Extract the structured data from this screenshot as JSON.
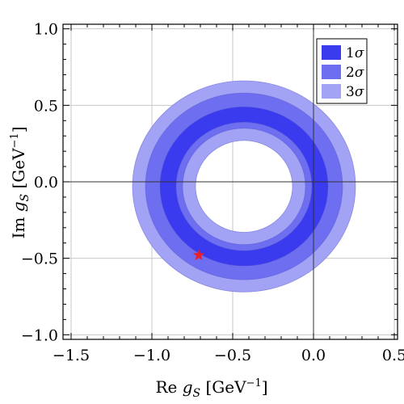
{
  "chart_data": {
    "type": "contour",
    "xlabel": {
      "prefix": "Re ",
      "var": "g",
      "sub": "S",
      "unit_pre": " [GeV",
      "sup": "−1",
      "unit_post": "]"
    },
    "ylabel": {
      "prefix": "Im ",
      "var": "g",
      "sub": "S",
      "unit_pre": " [GeV",
      "sup": "−1",
      "unit_post": "]"
    },
    "xlim": [
      -1.55,
      0.52
    ],
    "ylim": [
      -1.03,
      1.03
    ],
    "xticks": [
      {
        "value": -1.5,
        "label": "−1.5"
      },
      {
        "value": -1.0,
        "label": "−1.0"
      },
      {
        "value": -0.5,
        "label": "−0.5"
      },
      {
        "value": 0.0,
        "label": "0.0"
      },
      {
        "value": 0.5,
        "label": "0.5"
      }
    ],
    "yticks": [
      {
        "value": -1.0,
        "label": "−1.0"
      },
      {
        "value": -0.5,
        "label": "−0.5"
      },
      {
        "value": 0.0,
        "label": "0.0"
      },
      {
        "value": 0.5,
        "label": "0.5"
      },
      {
        "value": 1.0,
        "label": "1.0"
      }
    ],
    "grid": true,
    "center": [
      -0.43,
      -0.03
    ],
    "regions": [
      {
        "name": "3σ",
        "label_main": "3",
        "label_sym": "σ",
        "r_inner": 0.3,
        "r_outer": 0.69,
        "color": "#a3a3f5"
      },
      {
        "name": "2σ",
        "label_main": "2",
        "label_sym": "σ",
        "r_inner": 0.38,
        "r_outer": 0.61,
        "color": "#6e6ef0"
      },
      {
        "name": "1σ",
        "label_main": "1",
        "label_sym": "σ",
        "r_inner": 0.42,
        "r_outer": 0.52,
        "color": "#3a3aee"
      }
    ],
    "marker": {
      "x": -0.71,
      "y": -0.48,
      "symbol": "star",
      "color": "#e8202a"
    },
    "legend": {
      "position": "top-right",
      "entries": [
        "1σ",
        "2σ",
        "3σ"
      ]
    }
  }
}
